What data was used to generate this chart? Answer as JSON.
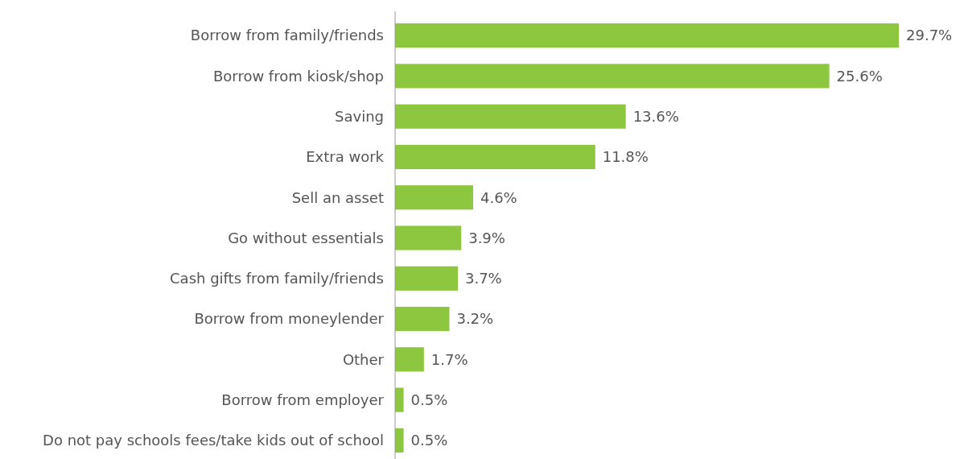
{
  "chart_data": {
    "type": "bar",
    "orientation": "horizontal",
    "categories": [
      "Borrow from family/friends",
      "Borrow from kiosk/shop",
      "Saving",
      "Extra work",
      "Sell an asset",
      "Go without essentials",
      "Cash gifts from family/friends",
      "Borrow from moneylender",
      "Other",
      "Borrow from employer",
      "Do not pay schools fees/take kids out of school"
    ],
    "values": [
      29.7,
      25.6,
      13.6,
      11.8,
      4.6,
      3.9,
      3.7,
      3.2,
      1.7,
      0.5,
      0.5
    ],
    "value_labels": [
      "29.7%",
      "25.6%",
      "13.6%",
      "11.8%",
      "4.6%",
      "3.9%",
      "3.7%",
      "3.2%",
      "1.7%",
      "0.5%",
      "0.5%"
    ],
    "color": "#8dc63f"
  }
}
